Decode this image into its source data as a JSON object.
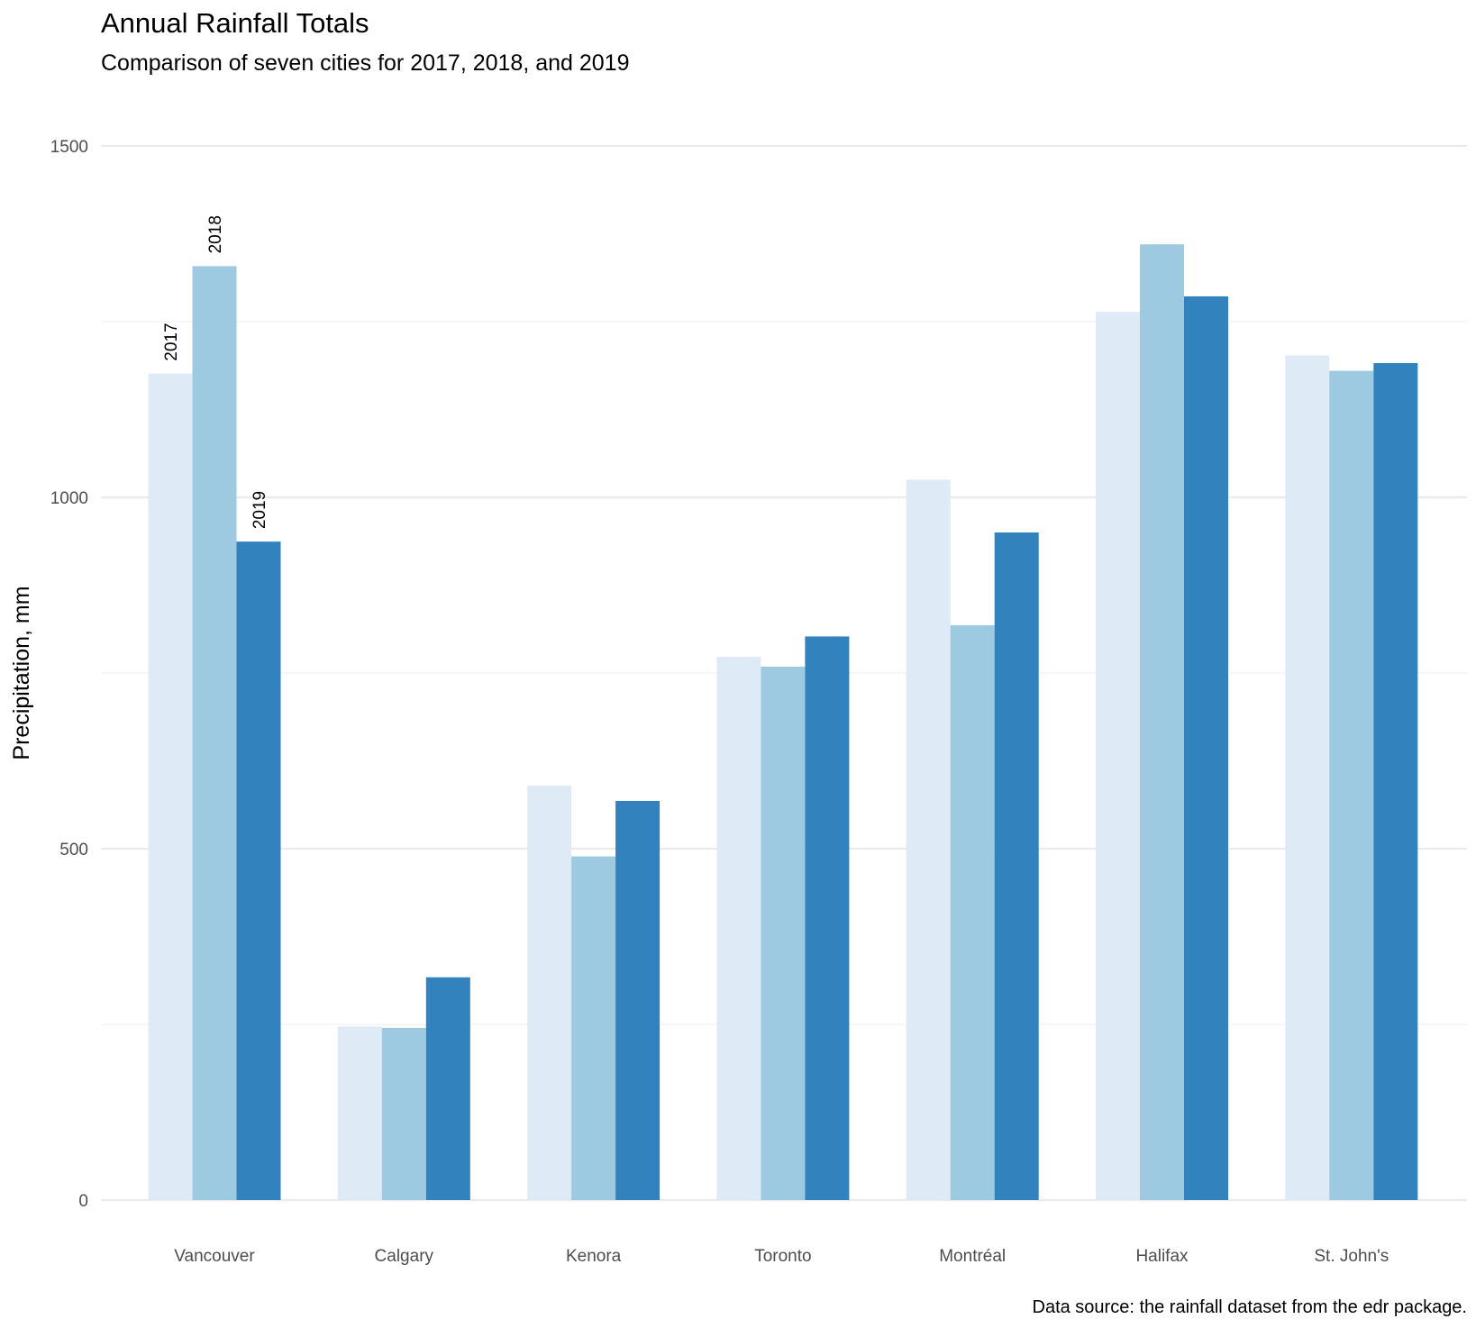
{
  "chart_data": {
    "type": "bar",
    "title": "Annual Rainfall Totals",
    "subtitle": "Comparison of seven cities for 2017, 2018, and 2019",
    "caption": "Data source: the rainfall dataset from the edr package.",
    "xlabel": "",
    "ylabel": "Precipitation, mm",
    "ylim": [
      0,
      1500
    ],
    "yticks": [
      0,
      500,
      1000,
      1500
    ],
    "grid": "horizontal",
    "legend": "none",
    "categories": [
      "Vancouver",
      "Calgary",
      "Kenora",
      "Toronto",
      "Montréal",
      "Halifax",
      "St. John's"
    ],
    "series": [
      {
        "name": "2017",
        "color": "#deebf7",
        "values": [
          1176,
          247,
          590,
          773,
          1025,
          1264,
          1202
        ]
      },
      {
        "name": "2018",
        "color": "#9ecae1",
        "values": [
          1329,
          245,
          489,
          759,
          818,
          1360,
          1180
        ]
      },
      {
        "name": "2019",
        "color": "#3182bd",
        "values": [
          937,
          317,
          568,
          802,
          950,
          1286,
          1191
        ]
      }
    ],
    "series_labels_on_category": "Vancouver"
  }
}
